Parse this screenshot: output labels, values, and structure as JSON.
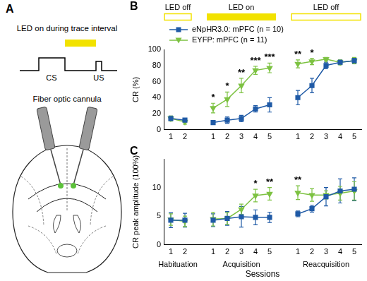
{
  "diagram": {
    "panel_label": "A",
    "title": "LED on during trace interval",
    "cs_label": "CS",
    "us_label": "US",
    "cannula_label": "Fiber optic cannula"
  },
  "chart_data": [
    {
      "type": "line",
      "panel_label": "B",
      "y_label": "CR (%)",
      "categories": [
        "1",
        "2",
        null,
        "1",
        "2",
        "3",
        "4",
        "5",
        null,
        "1",
        "2",
        "3",
        "4",
        "5"
      ],
      "ylim": [
        0,
        100
      ],
      "yticks": [
        0,
        20,
        40,
        60,
        80,
        100
      ],
      "grid": false,
      "legend": "upper left",
      "series": [
        {
          "name": "eNpHR3.0: mPFC (n = 10)",
          "color": "#1f5aa6",
          "marker": "square",
          "values": [
            14,
            12,
            null,
            9,
            12,
            14,
            26,
            31,
            null,
            40,
            55,
            80,
            84,
            86
          ],
          "errors": [
            3,
            2,
            null,
            2,
            4,
            4,
            4,
            9,
            null,
            9,
            9,
            4,
            3,
            3
          ]
        },
        {
          "name": "EYFP: mPFC (n = 11)",
          "color": "#7dc242",
          "marker": "triangle_down",
          "values": [
            14,
            10,
            null,
            27,
            38,
            55,
            74,
            77,
            null,
            82,
            85,
            88,
            84,
            86
          ],
          "errors": [
            3,
            3,
            null,
            6,
            9,
            9,
            5,
            6,
            null,
            5,
            4,
            2,
            3,
            4
          ]
        }
      ],
      "annotations": [
        {
          "index": 3,
          "text": "*"
        },
        {
          "index": 4,
          "text": "*"
        },
        {
          "index": 5,
          "text": "**"
        },
        {
          "index": 6,
          "text": "***"
        },
        {
          "index": 7,
          "text": "***"
        },
        {
          "index": 9,
          "text": "**"
        },
        {
          "index": 10,
          "text": "*"
        }
      ],
      "led_bands": [
        {
          "label": "LED off",
          "on": false,
          "from": 0,
          "to": 1
        },
        {
          "label": "LED on",
          "on": true,
          "from": 3,
          "to": 7
        },
        {
          "label": "LED off",
          "on": false,
          "from": 9,
          "to": 13
        }
      ]
    },
    {
      "type": "line",
      "panel_label": "C",
      "y_label": "CR peak amplitude (100%)",
      "x_label": "Sessions",
      "categories": [
        "1",
        "2",
        null,
        "1",
        "2",
        "3",
        "4",
        "5",
        null,
        "1",
        "2",
        "3",
        "4",
        "5"
      ],
      "ylim": [
        0,
        15
      ],
      "yticks": [
        0,
        5,
        10
      ],
      "grid": false,
      "series": [
        {
          "color": "#1f5aa6",
          "marker": "square",
          "values": [
            4.3,
            4.3,
            null,
            4.3,
            4.6,
            4.9,
            4.8,
            4.8,
            null,
            5.4,
            6.3,
            8.4,
            9.4,
            9.7
          ],
          "errors": [
            1.3,
            1.2,
            null,
            1.1,
            1.2,
            1.8,
            1.3,
            0.9,
            null,
            0.5,
            0.6,
            1.6,
            2.1,
            2.0
          ]
        },
        {
          "color": "#7dc242",
          "marker": "triangle_down",
          "values": [
            4.4,
            4.1,
            null,
            4.5,
            4.6,
            6.2,
            8.6,
            8.9,
            null,
            9.1,
            8.7,
            8.7,
            9.0,
            9.4
          ],
          "errors": [
            1.0,
            0.9,
            null,
            1.2,
            1.0,
            0.9,
            1.1,
            1.1,
            null,
            1.2,
            1.1,
            0.7,
            1.2,
            1.6
          ]
        }
      ],
      "annotations": [
        {
          "index": 6,
          "text": "*"
        },
        {
          "index": 7,
          "text": "**"
        },
        {
          "index": 9,
          "text": "**"
        }
      ],
      "groups": [
        {
          "name": "Habituation",
          "from": 0,
          "to": 1
        },
        {
          "name": "Acquisition",
          "from": 3,
          "to": 7
        },
        {
          "name": "Reacquisition",
          "from": 9,
          "to": 13
        }
      ]
    }
  ]
}
